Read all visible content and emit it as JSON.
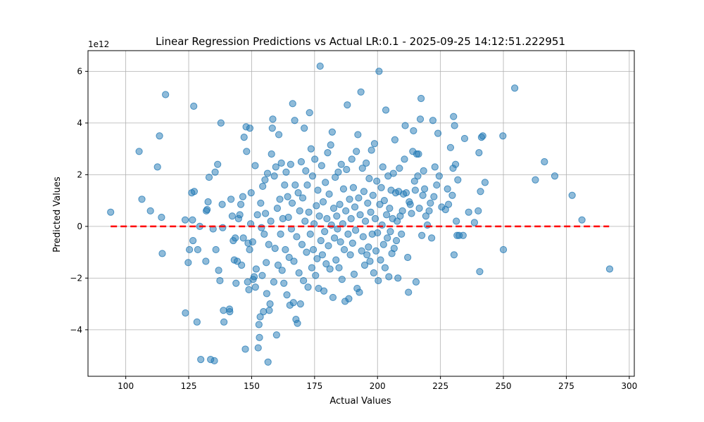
{
  "chart_data": {
    "type": "scatter",
    "title": "Linear Regression Predictions vs Actual LR:0.1 - 2025-09-25 14:12:51.222951",
    "xlabel": "Actual Values",
    "ylabel": "Predicted Values",
    "y_offset_label": "1e12",
    "y_scale": 1000000000000,
    "xlim": [
      85,
      302
    ],
    "ylim": [
      -5.8,
      6.8
    ],
    "xticks": [
      100,
      125,
      150,
      175,
      200,
      225,
      250,
      275,
      300
    ],
    "yticks": [
      -4,
      -2,
      0,
      2,
      4,
      6
    ],
    "grid": true,
    "point_color": "#1f77b4",
    "point_opacity": 0.5,
    "reference_line": {
      "x": [
        94,
        292
      ],
      "y": [
        0,
        0
      ],
      "color": "#ff0000",
      "style": "dashed"
    },
    "points": [
      {
        "x": 94,
        "y": 0.55
      },
      {
        "x": 105.3,
        "y": 2.9
      },
      {
        "x": 106.4,
        "y": 1.05
      },
      {
        "x": 109.8,
        "y": 0.6
      },
      {
        "x": 112.6,
        "y": 2.3
      },
      {
        "x": 113.4,
        "y": 3.5
      },
      {
        "x": 114.2,
        "y": 0.35
      },
      {
        "x": 114.5,
        "y": -1.05
      },
      {
        "x": 115.8,
        "y": 5.1
      },
      {
        "x": 123.6,
        "y": 0.25
      },
      {
        "x": 123.7,
        "y": -3.35
      },
      {
        "x": 124.8,
        "y": -1.4
      },
      {
        "x": 125.3,
        "y": -0.9
      },
      {
        "x": 126.2,
        "y": 1.3
      },
      {
        "x": 126.5,
        "y": 0.25
      },
      {
        "x": 126.7,
        "y": -0.55
      },
      {
        "x": 127,
        "y": 4.65
      },
      {
        "x": 127.2,
        "y": 1.35
      },
      {
        "x": 128.3,
        "y": -3.7
      },
      {
        "x": 128.6,
        "y": -0.9
      },
      {
        "x": 129.4,
        "y": 0
      },
      {
        "x": 129.8,
        "y": -5.15
      },
      {
        "x": 131.8,
        "y": -1.35
      },
      {
        "x": 132,
        "y": 0.6
      },
      {
        "x": 132.3,
        "y": 0.65
      },
      {
        "x": 132.7,
        "y": 0.95
      },
      {
        "x": 133.1,
        "y": 1.9
      },
      {
        "x": 133.7,
        "y": -5.15
      },
      {
        "x": 134.7,
        "y": -0.1
      },
      {
        "x": 135.2,
        "y": -5.2
      },
      {
        "x": 135.5,
        "y": 2.1
      },
      {
        "x": 135.8,
        "y": -0.9
      },
      {
        "x": 136.5,
        "y": 2.4
      },
      {
        "x": 136.9,
        "y": -1.7
      },
      {
        "x": 137.4,
        "y": -2.1
      },
      {
        "x": 137.8,
        "y": 4
      },
      {
        "x": 138.3,
        "y": 0.85
      },
      {
        "x": 138.5,
        "y": -0.05
      },
      {
        "x": 138.8,
        "y": -3.25
      },
      {
        "x": 139,
        "y": -3.7
      },
      {
        "x": 141.2,
        "y": -3.2
      },
      {
        "x": 141.3,
        "y": -3.3
      },
      {
        "x": 141.8,
        "y": 1.05
      },
      {
        "x": 142.3,
        "y": 0.4
      },
      {
        "x": 142.7,
        "y": -0.55
      },
      {
        "x": 143.1,
        "y": -1.3
      },
      {
        "x": 143.5,
        "y": -0.45
      },
      {
        "x": 143.8,
        "y": -2.2
      },
      {
        "x": 144.3,
        "y": -1.35
      },
      {
        "x": 144.8,
        "y": 0.3
      },
      {
        "x": 145.3,
        "y": 0.45
      },
      {
        "x": 145.7,
        "y": 0.85
      },
      {
        "x": 146,
        "y": -1.5
      },
      {
        "x": 146.5,
        "y": 1.15
      },
      {
        "x": 146.7,
        "y": -0.45
      },
      {
        "x": 147,
        "y": 3.45
      },
      {
        "x": 147.5,
        "y": -4.75
      },
      {
        "x": 147.8,
        "y": 3.85
      },
      {
        "x": 148,
        "y": 2.9
      },
      {
        "x": 148.4,
        "y": -2.15
      },
      {
        "x": 148.6,
        "y": -0.65
      },
      {
        "x": 148.9,
        "y": -2.45
      },
      {
        "x": 149.2,
        "y": -0.9
      },
      {
        "x": 149.3,
        "y": 3.8
      },
      {
        "x": 149.6,
        "y": 0.1
      },
      {
        "x": 149.8,
        "y": 1.3
      },
      {
        "x": 150.4,
        "y": -0.6
      },
      {
        "x": 150.6,
        "y": -2.05
      },
      {
        "x": 151,
        "y": -1.95
      },
      {
        "x": 151.4,
        "y": 2.35
      },
      {
        "x": 151.5,
        "y": -2.35
      },
      {
        "x": 151.8,
        "y": -1.65
      },
      {
        "x": 152.3,
        "y": 0.45
      },
      {
        "x": 152.6,
        "y": -4.7
      },
      {
        "x": 152.9,
        "y": -3.8
      },
      {
        "x": 153.1,
        "y": -4.3
      },
      {
        "x": 153.4,
        "y": -3.5
      },
      {
        "x": 153.6,
        "y": 0.9
      },
      {
        "x": 153.9,
        "y": -0.05
      },
      {
        "x": 154.2,
        "y": -1.9
      },
      {
        "x": 154.4,
        "y": 1.55
      },
      {
        "x": 154.7,
        "y": -3.3
      },
      {
        "x": 155,
        "y": -0.3
      },
      {
        "x": 155.3,
        "y": 1.8
      },
      {
        "x": 155.5,
        "y": 0.5
      },
      {
        "x": 155.8,
        "y": -1.4
      },
      {
        "x": 156,
        "y": -2.6
      },
      {
        "x": 156.3,
        "y": 2.05
      },
      {
        "x": 156.5,
        "y": -5.25
      },
      {
        "x": 156.8,
        "y": -0.7
      },
      {
        "x": 157,
        "y": -3.25
      },
      {
        "x": 157.3,
        "y": -3
      },
      {
        "x": 157.6,
        "y": 0.2
      },
      {
        "x": 157.9,
        "y": 2.8
      },
      {
        "x": 158.2,
        "y": 3.8
      },
      {
        "x": 158.4,
        "y": 4.15
      },
      {
        "x": 158.8,
        "y": -2.15
      },
      {
        "x": 159,
        "y": 1.95
      },
      {
        "x": 159.3,
        "y": -0.85
      },
      {
        "x": 159.6,
        "y": 2.3
      },
      {
        "x": 159.9,
        "y": -4.2
      },
      {
        "x": 160.2,
        "y": 0.7
      },
      {
        "x": 160.5,
        "y": -1.5
      },
      {
        "x": 160.8,
        "y": 3.55
      },
      {
        "x": 161.2,
        "y": 1.05
      },
      {
        "x": 161.5,
        "y": -0.3
      },
      {
        "x": 161.8,
        "y": 2.45
      },
      {
        "x": 162.1,
        "y": -1.7
      },
      {
        "x": 162.4,
        "y": 0.3
      },
      {
        "x": 162.8,
        "y": -2.2
      },
      {
        "x": 163.1,
        "y": 1.6
      },
      {
        "x": 163.4,
        "y": -0.9
      },
      {
        "x": 163.7,
        "y": 2.1
      },
      {
        "x": 164,
        "y": -2.65
      },
      {
        "x": 164.3,
        "y": 1.15
      },
      {
        "x": 164.6,
        "y": 0.35
      },
      {
        "x": 164.9,
        "y": -1.2
      },
      {
        "x": 165.2,
        "y": -3.05
      },
      {
        "x": 165.5,
        "y": 2.4
      },
      {
        "x": 165.8,
        "y": -0.1
      },
      {
        "x": 166.1,
        "y": 0.9
      },
      {
        "x": 166.3,
        "y": 4.75
      },
      {
        "x": 166.6,
        "y": -2.95
      },
      {
        "x": 166.8,
        "y": -1.35
      },
      {
        "x": 167.1,
        "y": 4.1
      },
      {
        "x": 167.3,
        "y": 1.6
      },
      {
        "x": 167.6,
        "y": -3.6
      },
      {
        "x": 167.9,
        "y": -0.4
      },
      {
        "x": 168.2,
        "y": -3.75
      },
      {
        "x": 168.5,
        "y": 1.3
      },
      {
        "x": 168.8,
        "y": -1.8
      },
      {
        "x": 169.1,
        "y": 0.6
      },
      {
        "x": 169.4,
        "y": -3
      },
      {
        "x": 169.7,
        "y": 2.5
      },
      {
        "x": 170,
        "y": -0.7
      },
      {
        "x": 170.3,
        "y": 1.1
      },
      {
        "x": 170.6,
        "y": -2.1
      },
      {
        "x": 170.9,
        "y": 3.8
      },
      {
        "x": 171.2,
        "y": 0.2
      },
      {
        "x": 171.5,
        "y": 2.15
      },
      {
        "x": 171.8,
        "y": -1.0
      },
      {
        "x": 172.1,
        "y": 1.6
      },
      {
        "x": 172.4,
        "y": -2.35
      },
      {
        "x": 172.7,
        "y": 0.55
      },
      {
        "x": 173,
        "y": 4.4
      },
      {
        "x": 173.3,
        "y": -0.3
      },
      {
        "x": 173.6,
        "y": 3.0
      },
      {
        "x": 173.9,
        "y": -1.6
      },
      {
        "x": 174.2,
        "y": 1.95
      },
      {
        "x": 174.5,
        "y": -0.9
      },
      {
        "x": 174.8,
        "y": 0.1
      },
      {
        "x": 175.1,
        "y": 2.6
      },
      {
        "x": 175.4,
        "y": -1.9
      },
      {
        "x": 175.7,
        "y": 0.8
      },
      {
        "x": 176,
        "y": -1.25
      },
      {
        "x": 176.3,
        "y": 1.4
      },
      {
        "x": 176.6,
        "y": -2.4
      },
      {
        "x": 176.9,
        "y": 0.4
      },
      {
        "x": 177.2,
        "y": 6.2
      },
      {
        "x": 177.5,
        "y": -0.55
      },
      {
        "x": 177.8,
        "y": 2.35
      },
      {
        "x": 178.1,
        "y": -1.1
      },
      {
        "x": 178.4,
        "y": 0.95
      },
      {
        "x": 178.7,
        "y": -2.5
      },
      {
        "x": 179,
        "y": -0.2
      },
      {
        "x": 179.3,
        "y": 1.7
      },
      {
        "x": 179.6,
        "y": -1.45
      },
      {
        "x": 179.9,
        "y": 0.3
      },
      {
        "x": 180.2,
        "y": 2.85
      },
      {
        "x": 180.5,
        "y": -0.75
      },
      {
        "x": 180.8,
        "y": 1.25
      },
      {
        "x": 181.1,
        "y": -1.65
      },
      {
        "x": 181.4,
        "y": 3.15
      },
      {
        "x": 181.7,
        "y": 0.05
      },
      {
        "x": 182,
        "y": 3.65
      },
      {
        "x": 182.3,
        "y": -2.75
      },
      {
        "x": 182.6,
        "y": 0.7
      },
      {
        "x": 182.9,
        "y": -0.45
      },
      {
        "x": 183.2,
        "y": 1.9
      },
      {
        "x": 183.5,
        "y": -1.3
      },
      {
        "x": 183.8,
        "y": 0.4
      },
      {
        "x": 184.1,
        "y": -0.1
      },
      {
        "x": 184.4,
        "y": 2.1
      },
      {
        "x": 184.7,
        "y": -1.6
      },
      {
        "x": 185,
        "y": 0.85
      },
      {
        "x": 185.3,
        "y": -0.6
      },
      {
        "x": 185.6,
        "y": 2.4
      },
      {
        "x": 185.9,
        "y": -2.05
      },
      {
        "x": 186.2,
        "y": 0.1
      },
      {
        "x": 186.5,
        "y": 1.45
      },
      {
        "x": 186.8,
        "y": -0.9
      },
      {
        "x": 187.1,
        "y": -2.9
      },
      {
        "x": 187.4,
        "y": 0.6
      },
      {
        "x": 187.7,
        "y": 2.2
      },
      {
        "x": 188,
        "y": 4.7
      },
      {
        "x": 188.3,
        "y": -0.3
      },
      {
        "x": 188.6,
        "y": -2.8
      },
      {
        "x": 188.9,
        "y": 1.05
      },
      {
        "x": 189.2,
        "y": -1.1
      },
      {
        "x": 189.5,
        "y": 0.3
      },
      {
        "x": 189.8,
        "y": 2.6
      },
      {
        "x": 190.1,
        "y": -0.65
      },
      {
        "x": 190.4,
        "y": 1.5
      },
      {
        "x": 190.7,
        "y": -1.85
      },
      {
        "x": 191,
        "y": 0.75
      },
      {
        "x": 191.3,
        "y": -0.15
      },
      {
        "x": 191.6,
        "y": 2.9
      },
      {
        "x": 191.9,
        "y": -2.4
      },
      {
        "x": 192.2,
        "y": 3.55
      },
      {
        "x": 192.5,
        "y": 1.1
      },
      {
        "x": 192.8,
        "y": -2.55
      },
      {
        "x": 193.1,
        "y": 0.45
      },
      {
        "x": 193.4,
        "y": 5.2
      },
      {
        "x": 193.7,
        "y": -0.95
      },
      {
        "x": 194,
        "y": 2.25
      },
      {
        "x": 194.3,
        "y": -0.4
      },
      {
        "x": 194.6,
        "y": 1.35
      },
      {
        "x": 194.9,
        "y": -1.5
      },
      {
        "x": 195.2,
        "y": 0.2
      },
      {
        "x": 195.5,
        "y": 2.45
      },
      {
        "x": 195.8,
        "y": -1.1
      },
      {
        "x": 196.1,
        "y": 0.9
      },
      {
        "x": 196.4,
        "y": -0.8
      },
      {
        "x": 196.7,
        "y": 1.85
      },
      {
        "x": 197,
        "y": -1.35
      },
      {
        "x": 197.3,
        "y": 0.55
      },
      {
        "x": 197.6,
        "y": 2.95
      },
      {
        "x": 197.9,
        "y": -0.3
      },
      {
        "x": 198.2,
        "y": 1.2
      },
      {
        "x": 198.5,
        "y": -1.8
      },
      {
        "x": 198.8,
        "y": 3.2
      },
      {
        "x": 199.1,
        "y": 0.3
      },
      {
        "x": 199.4,
        "y": -0.95
      },
      {
        "x": 199.7,
        "y": 1.75
      },
      {
        "x": 200,
        "y": -0.25
      },
      {
        "x": 200.3,
        "y": -2.1
      },
      {
        "x": 200.6,
        "y": 6.0
      },
      {
        "x": 200.9,
        "y": 0.85
      },
      {
        "x": 201.2,
        "y": -1.3
      },
      {
        "x": 201.5,
        "y": 1.5
      },
      {
        "x": 201.8,
        "y": 0.05
      },
      {
        "x": 202.1,
        "y": 2.3
      },
      {
        "x": 202.4,
        "y": -0.7
      },
      {
        "x": 202.7,
        "y": 1.0
      },
      {
        "x": 203,
        "y": -1.6
      },
      {
        "x": 203.3,
        "y": 4.5
      },
      {
        "x": 203.6,
        "y": 0.45
      },
      {
        "x": 203.9,
        "y": -0.45
      },
      {
        "x": 204.2,
        "y": 1.95
      },
      {
        "x": 204.5,
        "y": -1.95
      },
      {
        "x": 204.8,
        "y": 0.7
      },
      {
        "x": 205.1,
        "y": -0.2
      },
      {
        "x": 205.4,
        "y": 1.4
      },
      {
        "x": 205.7,
        "y": -1.05
      },
      {
        "x": 206,
        "y": 0.3
      },
      {
        "x": 206.3,
        "y": 2.05
      },
      {
        "x": 206.6,
        "y": -0.85
      },
      {
        "x": 206.9,
        "y": 3.35
      },
      {
        "x": 207.2,
        "y": 1.3
      },
      {
        "x": 207.5,
        "y": -0.55
      },
      {
        "x": 207.8,
        "y": 0.2
      },
      {
        "x": 208.1,
        "y": -2.0
      },
      {
        "x": 208.4,
        "y": 1.35
      },
      {
        "x": 208.7,
        "y": 2.25
      },
      {
        "x": 209,
        "y": 0.4
      },
      {
        "x": 209.5,
        "y": -0.3
      },
      {
        "x": 209.9,
        "y": 0.6
      },
      {
        "x": 210.3,
        "y": 1.25
      },
      {
        "x": 210.7,
        "y": 2.6
      },
      {
        "x": 211,
        "y": 3.9
      },
      {
        "x": 211.4,
        "y": 1.3
      },
      {
        "x": 212,
        "y": -1.2
      },
      {
        "x": 212.3,
        "y": -2.55
      },
      {
        "x": 212.6,
        "y": 0.95
      },
      {
        "x": 213,
        "y": 0.85
      },
      {
        "x": 213.5,
        "y": 0.5
      },
      {
        "x": 214,
        "y": 2.9
      },
      {
        "x": 214.3,
        "y": 3.7
      },
      {
        "x": 214.7,
        "y": 1.75
      },
      {
        "x": 215,
        "y": 1.4
      },
      {
        "x": 215.3,
        "y": -2.15
      },
      {
        "x": 215.6,
        "y": 2.8
      },
      {
        "x": 216,
        "y": 1.95
      },
      {
        "x": 216.3,
        "y": 2.8
      },
      {
        "x": 216.6,
        "y": 0.7
      },
      {
        "x": 217,
        "y": 4.15
      },
      {
        "x": 217.3,
        "y": 4.95
      },
      {
        "x": 217.6,
        "y": -0.35
      },
      {
        "x": 218,
        "y": 1.2
      },
      {
        "x": 218.3,
        "y": 2.15
      },
      {
        "x": 218.7,
        "y": 1.45
      },
      {
        "x": 219.2,
        "y": 0.4
      },
      {
        "x": 219.8,
        "y": 0.05
      },
      {
        "x": 220.5,
        "y": 0.6
      },
      {
        "x": 221,
        "y": 0.9
      },
      {
        "x": 221.5,
        "y": -0.45
      },
      {
        "x": 222,
        "y": 4.1
      },
      {
        "x": 222.4,
        "y": 1.15
      },
      {
        "x": 222.8,
        "y": 2.3
      },
      {
        "x": 223.5,
        "y": 1.6
      },
      {
        "x": 224,
        "y": 3.6
      },
      {
        "x": 224.5,
        "y": 1.95
      },
      {
        "x": 225.5,
        "y": 0.75
      },
      {
        "x": 227,
        "y": 0.65
      },
      {
        "x": 227.8,
        "y": 1.45
      },
      {
        "x": 228.2,
        "y": 0.85
      },
      {
        "x": 229,
        "y": 3.05
      },
      {
        "x": 229.7,
        "y": 1.2
      },
      {
        "x": 230,
        "y": 2.25
      },
      {
        "x": 230.2,
        "y": 4.25
      },
      {
        "x": 230.4,
        "y": -1.1
      },
      {
        "x": 230.6,
        "y": 3.9
      },
      {
        "x": 231,
        "y": 2.4
      },
      {
        "x": 231.3,
        "y": 0.2
      },
      {
        "x": 231.6,
        "y": -0.35
      },
      {
        "x": 231.9,
        "y": 1.8
      },
      {
        "x": 232.4,
        "y": -0.35
      },
      {
        "x": 234,
        "y": -0.35
      },
      {
        "x": 234.6,
        "y": 3.4
      },
      {
        "x": 236.2,
        "y": 0.55
      },
      {
        "x": 238.5,
        "y": 0.15
      },
      {
        "x": 240,
        "y": 0.6
      },
      {
        "x": 240.3,
        "y": 2.85
      },
      {
        "x": 240.6,
        "y": -1.75
      },
      {
        "x": 240.9,
        "y": 1.35
      },
      {
        "x": 241.3,
        "y": 3.45
      },
      {
        "x": 241.8,
        "y": 3.5
      },
      {
        "x": 242.7,
        "y": 1.7
      },
      {
        "x": 249.8,
        "y": 3.5
      },
      {
        "x": 250,
        "y": -0.9
      },
      {
        "x": 254.5,
        "y": 5.35
      },
      {
        "x": 262.7,
        "y": 1.8
      },
      {
        "x": 266.3,
        "y": 2.5
      },
      {
        "x": 270.4,
        "y": 1.95
      },
      {
        "x": 277.3,
        "y": 1.2
      },
      {
        "x": 281.2,
        "y": 0.25
      },
      {
        "x": 292.2,
        "y": -1.65
      }
    ]
  }
}
